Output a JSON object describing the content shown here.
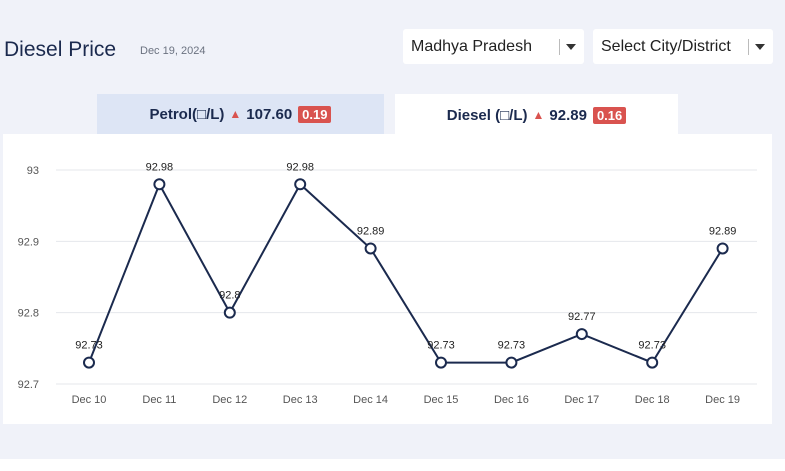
{
  "header": {
    "title": "Diesel Price",
    "date": "Dec 19, 2024"
  },
  "filters": {
    "state": "Madhya Pradesh",
    "city_placeholder": "Select City/District"
  },
  "tabs": [
    {
      "label": "Petrol(□/L)",
      "price": "107.60",
      "change": "0.19",
      "active": false
    },
    {
      "label": "Diesel (□/L)",
      "price": "92.89",
      "change": "0.16",
      "active": true
    }
  ],
  "colors": {
    "line": "#1b2a4e",
    "up": "#d9534f",
    "grid": "#e5e7eb"
  },
  "chart_data": {
    "type": "line",
    "categories": [
      "Dec 10",
      "Dec 11",
      "Dec 12",
      "Dec 13",
      "Dec 14",
      "Dec 15",
      "Dec 16",
      "Dec 17",
      "Dec 18",
      "Dec 19"
    ],
    "values": [
      92.73,
      92.98,
      92.8,
      92.98,
      92.89,
      92.73,
      92.73,
      92.77,
      92.73,
      92.89
    ],
    "labels": [
      "92.73",
      "92.98",
      "92.8",
      "92.98",
      "92.89",
      "92.73",
      "92.73",
      "92.77",
      "92.73",
      "92.89"
    ],
    "yticks": [
      "92.7",
      "92.8",
      "92.9",
      "93"
    ],
    "ylim": [
      92.7,
      93
    ],
    "grid": true
  }
}
